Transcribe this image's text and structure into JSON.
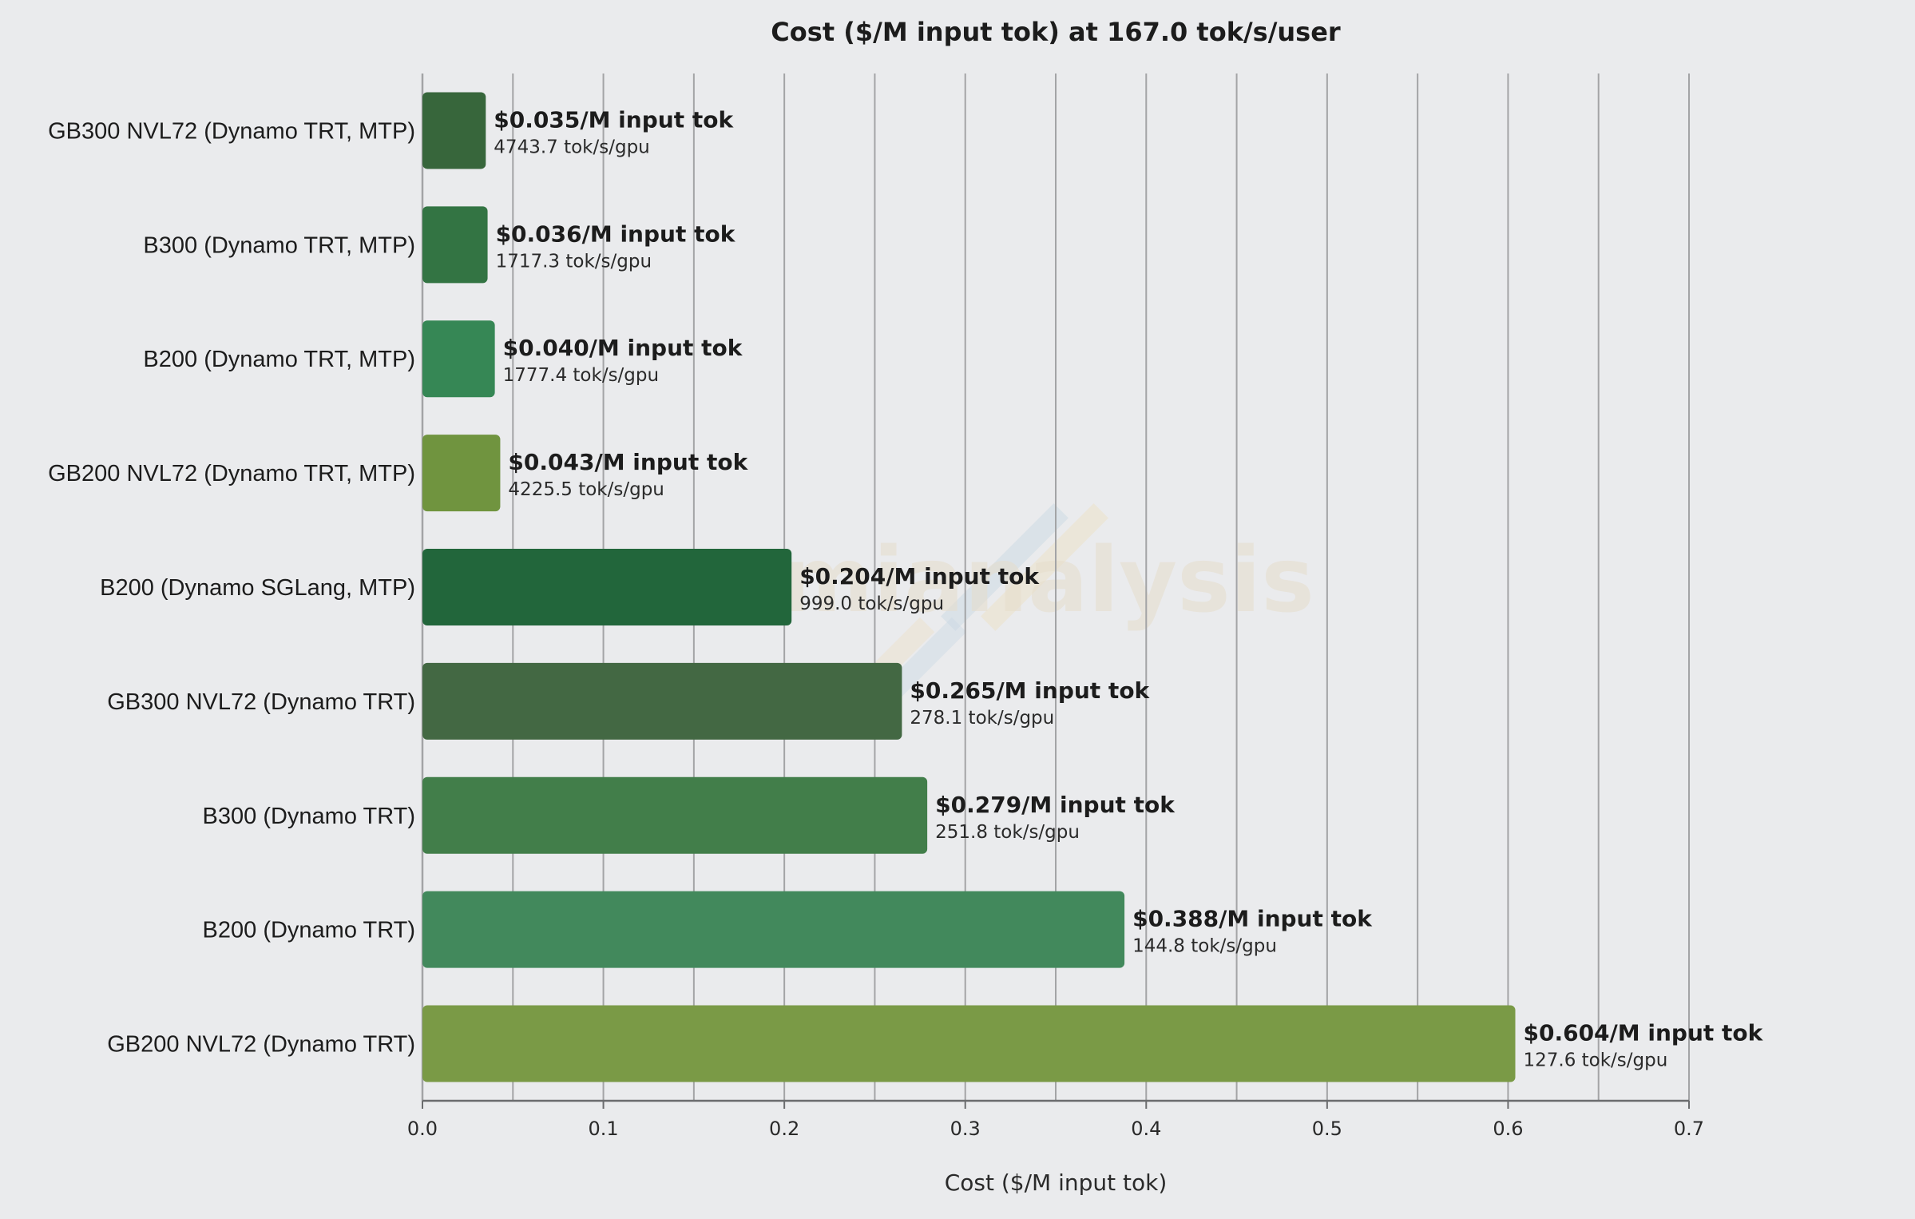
{
  "chart_data": {
    "type": "bar",
    "orientation": "horizontal",
    "title": "Cost ($/M input tok) at 167.0 tok/s/user",
    "xlabel": "Cost ($/M input tok)",
    "ylabel": "",
    "xlim": [
      0,
      0.7
    ],
    "xticks": [
      "0.0",
      "0.1",
      "0.2",
      "0.3",
      "0.4",
      "0.5",
      "0.6",
      "0.7"
    ],
    "grid": "vertical",
    "watermark": "semianalysis",
    "bars": [
      {
        "category": "GB300 NVL72 (Dynamo TRT, MTP)",
        "value": 0.035,
        "value_label": "$0.035/M input tok",
        "throughput_label": "4743.7 tok/s/gpu",
        "color": "#37663b"
      },
      {
        "category": "B300 (Dynamo TRT, MTP)",
        "value": 0.036,
        "value_label": "$0.036/M input tok",
        "throughput_label": "1717.3 tok/s/gpu",
        "color": "#337443"
      },
      {
        "category": "B200 (Dynamo TRT, MTP)",
        "value": 0.04,
        "value_label": "$0.040/M input tok",
        "throughput_label": "1777.4 tok/s/gpu",
        "color": "#368755"
      },
      {
        "category": "GB200 NVL72 (Dynamo TRT, MTP)",
        "value": 0.043,
        "value_label": "$0.043/M input tok",
        "throughput_label": "4225.5 tok/s/gpu",
        "color": "#70943f"
      },
      {
        "category": "B200 (Dynamo SGLang, MTP)",
        "value": 0.204,
        "value_label": "$0.204/M input tok",
        "throughput_label": "999.0 tok/s/gpu",
        "color": "#22663b"
      },
      {
        "category": "GB300 NVL72 (Dynamo TRT)",
        "value": 0.265,
        "value_label": "$0.265/M input tok",
        "throughput_label": "278.1 tok/s/gpu",
        "color": "#436843"
      },
      {
        "category": "B300 (Dynamo TRT)",
        "value": 0.279,
        "value_label": "$0.279/M input tok",
        "throughput_label": "251.8 tok/s/gpu",
        "color": "#427e4a"
      },
      {
        "category": "B200 (Dynamo TRT)",
        "value": 0.388,
        "value_label": "$0.388/M input tok",
        "throughput_label": "144.8 tok/s/gpu",
        "color": "#42895c"
      },
      {
        "category": "GB200 NVL72 (Dynamo TRT)",
        "value": 0.604,
        "value_label": "$0.604/M input tok",
        "throughput_label": "127.6 tok/s/gpu",
        "color": "#7a9a46"
      }
    ]
  }
}
